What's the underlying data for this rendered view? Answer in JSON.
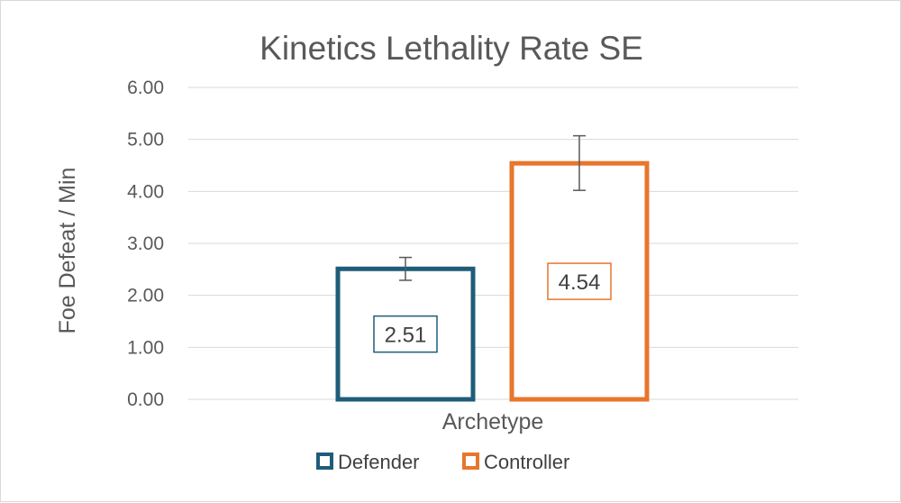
{
  "chart_data": {
    "type": "bar",
    "title": "Kinetics Lethality Rate SE",
    "xlabel": "Archetype",
    "ylabel": "Foe Defeat / Min",
    "ylim": [
      0,
      6
    ],
    "yticks": [
      0,
      1,
      2,
      3,
      4,
      5,
      6
    ],
    "ytick_labels": [
      "0.00",
      "1.00",
      "2.00",
      "3.00",
      "4.00",
      "5.00",
      "6.00"
    ],
    "grid": true,
    "legend": "bottom",
    "series": [
      {
        "name": "Defender",
        "value": 2.51,
        "label": "2.51",
        "error_low": 2.29,
        "error_high": 2.73,
        "color": "#1F5C7A"
      },
      {
        "name": "Controller",
        "value": 4.54,
        "label": "4.54",
        "error_low": 4.02,
        "error_high": 5.07,
        "color": "#E8762C"
      }
    ]
  }
}
